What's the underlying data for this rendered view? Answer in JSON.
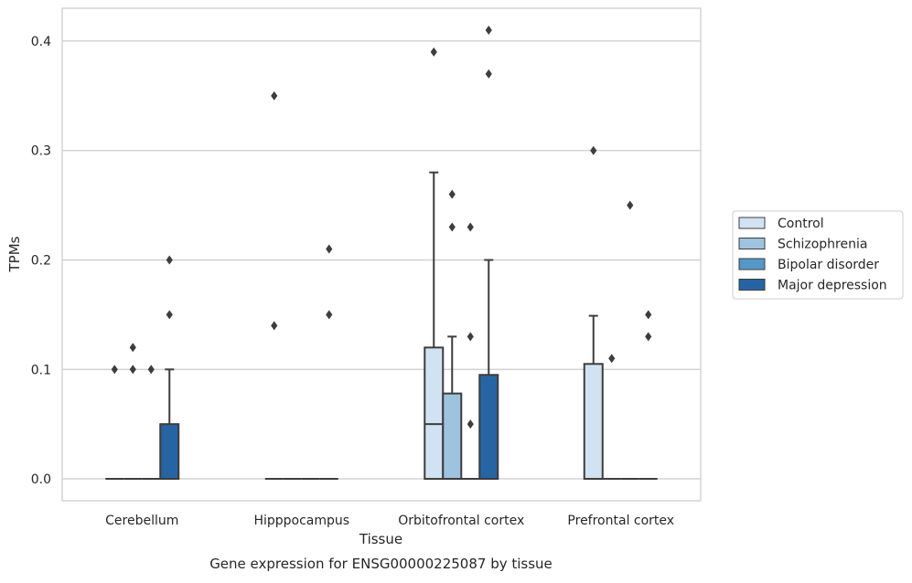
{
  "chart_data": {
    "type": "box",
    "title": "",
    "caption": "Gene expression for ENSG00000225087 by tissue",
    "xlabel": "Tissue",
    "ylabel": "TPMs",
    "ylim": [
      -0.02,
      0.43
    ],
    "yticks": [
      0.0,
      0.1,
      0.2,
      0.3,
      0.4
    ],
    "ytick_labels": [
      "0.0",
      "0.1",
      "0.2",
      "0.3",
      "0.4"
    ],
    "grid": "horizontal",
    "legend_position": "right",
    "categories": [
      "Cerebellum",
      "Hipppocampus",
      "Orbitofrontal cortex",
      "Prefrontal cortex"
    ],
    "series": [
      {
        "name": "Control",
        "color": "#d1e2f2",
        "boxes": [
          {
            "q1": 0.0,
            "median": 0.0,
            "q3": 0.0,
            "whisker_low": 0.0,
            "whisker_high": 0.0,
            "outliers": [
              0.1
            ]
          },
          {
            "q1": 0.0,
            "median": 0.0,
            "q3": 0.0,
            "whisker_low": 0.0,
            "whisker_high": 0.0,
            "outliers": [
              0.35,
              0.14
            ]
          },
          {
            "q1": 0.0,
            "median": 0.05,
            "q3": 0.12,
            "whisker_low": 0.0,
            "whisker_high": 0.28,
            "outliers": [
              0.39
            ]
          },
          {
            "q1": 0.0,
            "median": 0.0,
            "q3": 0.105,
            "whisker_low": 0.0,
            "whisker_high": 0.149,
            "outliers": [
              0.3
            ]
          }
        ]
      },
      {
        "name": "Schizophrenia",
        "color": "#9dc3df",
        "boxes": [
          {
            "q1": 0.0,
            "median": 0.0,
            "q3": 0.0,
            "whisker_low": 0.0,
            "whisker_high": 0.0,
            "outliers": [
              0.12,
              0.1
            ]
          },
          {
            "q1": 0.0,
            "median": 0.0,
            "q3": 0.0,
            "whisker_low": 0.0,
            "whisker_high": 0.0,
            "outliers": []
          },
          {
            "q1": 0.0,
            "median": 0.0,
            "q3": 0.078,
            "whisker_low": 0.0,
            "whisker_high": 0.13,
            "outliers": [
              0.26,
              0.23
            ]
          },
          {
            "q1": 0.0,
            "median": 0.0,
            "q3": 0.0,
            "whisker_low": 0.0,
            "whisker_high": 0.0,
            "outliers": [
              0.11
            ]
          }
        ]
      },
      {
        "name": "Bipolar disorder",
        "color": "#5498c8",
        "boxes": [
          {
            "q1": 0.0,
            "median": 0.0,
            "q3": 0.0,
            "whisker_low": 0.0,
            "whisker_high": 0.0,
            "outliers": [
              0.1
            ]
          },
          {
            "q1": 0.0,
            "median": 0.0,
            "q3": 0.0,
            "whisker_low": 0.0,
            "whisker_high": 0.0,
            "outliers": []
          },
          {
            "q1": 0.0,
            "median": 0.0,
            "q3": 0.0,
            "whisker_low": 0.0,
            "whisker_high": 0.0,
            "outliers": [
              0.23,
              0.13,
              0.05
            ]
          },
          {
            "q1": 0.0,
            "median": 0.0,
            "q3": 0.0,
            "whisker_low": 0.0,
            "whisker_high": 0.0,
            "outliers": [
              0.25
            ]
          }
        ]
      },
      {
        "name": "Major depression",
        "color": "#2764a3",
        "boxes": [
          {
            "q1": 0.0,
            "median": 0.0,
            "q3": 0.05,
            "whisker_low": 0.0,
            "whisker_high": 0.1,
            "outliers": [
              0.2,
              0.15
            ]
          },
          {
            "q1": 0.0,
            "median": 0.0,
            "q3": 0.0,
            "whisker_low": 0.0,
            "whisker_high": 0.0,
            "outliers": [
              0.21,
              0.15
            ]
          },
          {
            "q1": 0.0,
            "median": 0.0,
            "q3": 0.095,
            "whisker_low": 0.0,
            "whisker_high": 0.2,
            "outliers": [
              0.41,
              0.37
            ]
          },
          {
            "q1": 0.0,
            "median": 0.0,
            "q3": 0.0,
            "whisker_low": 0.0,
            "whisker_high": 0.0,
            "outliers": [
              0.15,
              0.13
            ]
          }
        ]
      }
    ]
  }
}
